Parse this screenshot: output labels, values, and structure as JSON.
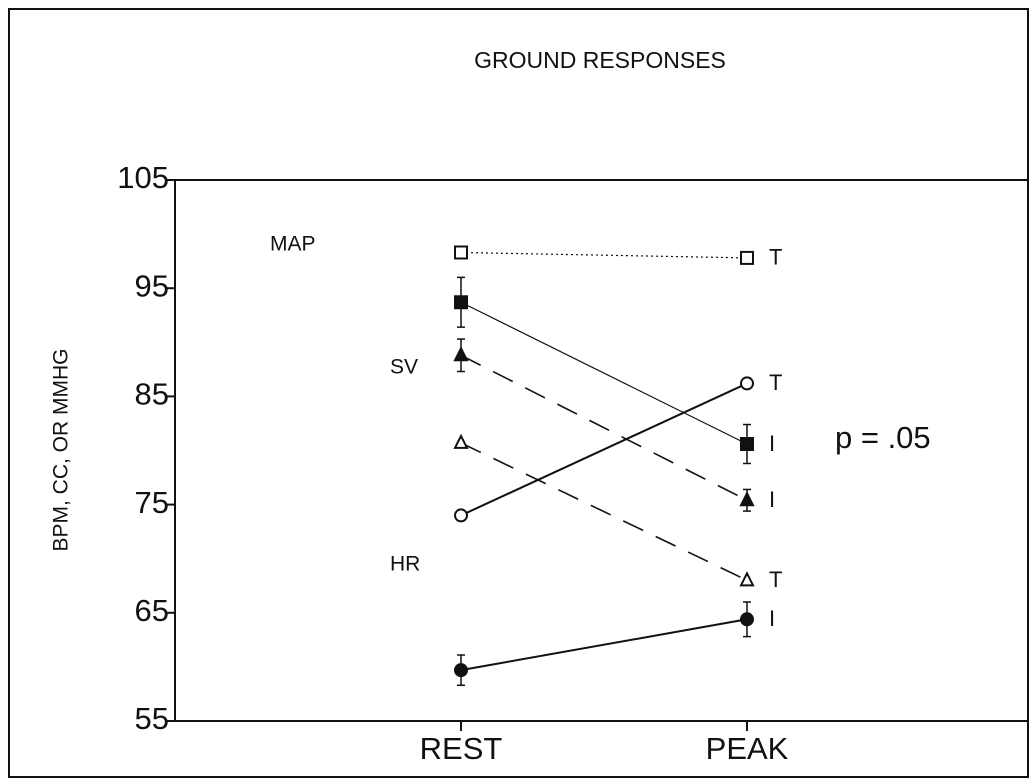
{
  "chart_data": {
    "type": "line",
    "title": "GROUND   RESPONSES",
    "ylabel": "BPM,  CC,  OR  MMHG",
    "categories": [
      "REST",
      "PEAK"
    ],
    "ylim": [
      55,
      105
    ],
    "yticks": [
      55,
      65,
      75,
      85,
      95,
      105
    ],
    "annotations": [
      "MAP",
      "SV",
      "HR",
      "p = .05"
    ],
    "series": [
      {
        "end_label": "T",
        "color": "#111",
        "marker": "square",
        "filled": false,
        "dash": "dotted",
        "values": [
          98.3,
          97.8
        ],
        "errors": [
          null,
          null
        ]
      },
      {
        "end_label": "I",
        "color": "#111",
        "marker": "square",
        "filled": true,
        "dash": "thin",
        "values": [
          93.7,
          80.6
        ],
        "errors": [
          2.3,
          1.8
        ]
      },
      {
        "end_label": "I",
        "color": "#111",
        "marker": "triangle",
        "filled": true,
        "dash": "dashed",
        "values": [
          88.8,
          75.4
        ],
        "errors": [
          1.5,
          1.0
        ]
      },
      {
        "end_label": "T",
        "color": "#111",
        "marker": "triangle",
        "filled": false,
        "dash": "dashed",
        "values": [
          80.7,
          68.0
        ],
        "errors": [
          null,
          null
        ]
      },
      {
        "end_label": "T",
        "color": "#111",
        "marker": "circle",
        "filled": false,
        "dash": "solid",
        "values": [
          74.0,
          86.2
        ],
        "errors": [
          null,
          null
        ]
      },
      {
        "end_label": "I",
        "color": "#111",
        "marker": "circle",
        "filled": true,
        "dash": "solid",
        "values": [
          59.7,
          64.4
        ],
        "errors": [
          1.4,
          1.6
        ]
      }
    ]
  }
}
